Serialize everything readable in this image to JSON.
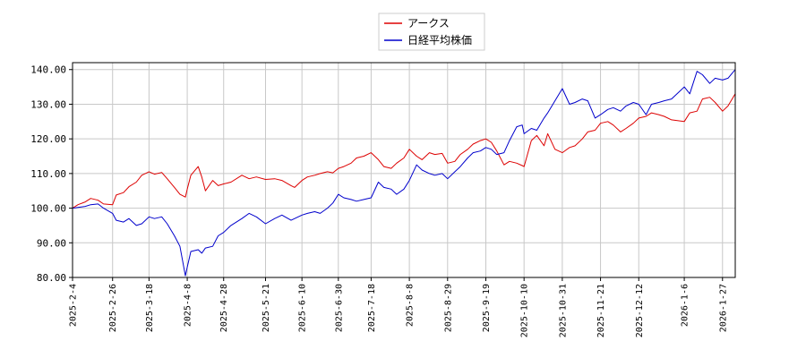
{
  "chart_data": {
    "type": "line",
    "title": "",
    "xlabel": "",
    "ylabel": "",
    "ylim": [
      80,
      142
    ],
    "yticks": [
      "80.00",
      "90.00",
      "100.00",
      "110.00",
      "120.00",
      "130.00",
      "140.00"
    ],
    "xticks": [
      "2025-2-4",
      "2025-2-26",
      "2025-3-18",
      "2025-4-8",
      "2025-4-28",
      "2025-5-21",
      "2025-6-10",
      "2025-6-30",
      "2025-7-18",
      "2025-8-8",
      "2025-8-29",
      "2025-9-19",
      "2025-10-10",
      "2025-10-31",
      "2025-11-21",
      "2025-12-12",
      "2026-1-6",
      "2026-1-27"
    ],
    "grid": true,
    "legend_position": "top-center",
    "series": [
      {
        "name": "アークス",
        "color": "#dd0000",
        "points": [
          [
            "2025-2-4",
            100.0
          ],
          [
            "2025-2-7",
            101.0
          ],
          [
            "2025-2-11",
            101.8
          ],
          [
            "2025-2-14",
            102.8
          ],
          [
            "2025-2-18",
            102.3
          ],
          [
            "2025-2-21",
            101.2
          ],
          [
            "2025-2-26",
            101.0
          ],
          [
            "2025-2-28",
            103.8
          ],
          [
            "2025-3-4",
            104.5
          ],
          [
            "2025-3-7",
            106.2
          ],
          [
            "2025-3-11",
            107.5
          ],
          [
            "2025-3-14",
            109.5
          ],
          [
            "2025-3-18",
            110.5
          ],
          [
            "2025-3-21",
            109.8
          ],
          [
            "2025-3-25",
            110.3
          ],
          [
            "2025-3-28",
            108.5
          ],
          [
            "2025-4-1",
            106.0
          ],
          [
            "2025-4-4",
            104.0
          ],
          [
            "2025-4-7",
            103.2
          ],
          [
            "2025-4-8",
            105.5
          ],
          [
            "2025-4-10",
            109.5
          ],
          [
            "2025-4-14",
            112.0
          ],
          [
            "2025-4-16",
            109.0
          ],
          [
            "2025-4-18",
            105.0
          ],
          [
            "2025-4-22",
            108.0
          ],
          [
            "2025-4-25",
            106.5
          ],
          [
            "2025-4-28",
            107.0
          ],
          [
            "2025-5-2",
            107.5
          ],
          [
            "2025-5-8",
            109.5
          ],
          [
            "2025-5-12",
            108.5
          ],
          [
            "2025-5-16",
            109.0
          ],
          [
            "2025-5-21",
            108.3
          ],
          [
            "2025-5-26",
            108.5
          ],
          [
            "2025-5-30",
            108.0
          ],
          [
            "2025-6-4",
            106.5
          ],
          [
            "2025-6-6",
            106.0
          ],
          [
            "2025-6-10",
            108.0
          ],
          [
            "2025-6-13",
            109.0
          ],
          [
            "2025-6-17",
            109.5
          ],
          [
            "2025-6-20",
            110.0
          ],
          [
            "2025-6-24",
            110.5
          ],
          [
            "2025-6-27",
            110.2
          ],
          [
            "2025-6-30",
            111.5
          ],
          [
            "2025-7-3",
            112.0
          ],
          [
            "2025-7-7",
            113.0
          ],
          [
            "2025-7-10",
            114.5
          ],
          [
            "2025-7-14",
            115.0
          ],
          [
            "2025-7-18",
            116.0
          ],
          [
            "2025-7-22",
            114.0
          ],
          [
            "2025-7-25",
            112.0
          ],
          [
            "2025-7-29",
            111.5
          ],
          [
            "2025-8-1",
            113.0
          ],
          [
            "2025-8-5",
            114.5
          ],
          [
            "2025-8-8",
            117.0
          ],
          [
            "2025-8-12",
            115.0
          ],
          [
            "2025-8-15",
            114.0
          ],
          [
            "2025-8-19",
            116.0
          ],
          [
            "2025-8-22",
            115.5
          ],
          [
            "2025-8-26",
            115.8
          ],
          [
            "2025-8-29",
            113.0
          ],
          [
            "2025-9-2",
            113.5
          ],
          [
            "2025-9-5",
            115.5
          ],
          [
            "2025-9-9",
            117.0
          ],
          [
            "2025-9-12",
            118.5
          ],
          [
            "2025-9-16",
            119.5
          ],
          [
            "2025-9-19",
            120.0
          ],
          [
            "2025-9-22",
            119.0
          ],
          [
            "2025-9-25",
            116.5
          ],
          [
            "2025-9-29",
            112.5
          ],
          [
            "2025-10-2",
            113.5
          ],
          [
            "2025-10-6",
            113.0
          ],
          [
            "2025-10-9",
            112.3
          ],
          [
            "2025-10-10",
            112.0
          ],
          [
            "2025-10-14",
            119.5
          ],
          [
            "2025-10-17",
            121.0
          ],
          [
            "2025-10-21",
            118.0
          ],
          [
            "2025-10-23",
            121.5
          ],
          [
            "2025-10-27",
            117.0
          ],
          [
            "2025-10-31",
            116.0
          ],
          [
            "2025-11-4",
            117.5
          ],
          [
            "2025-11-7",
            118.0
          ],
          [
            "2025-11-11",
            120.0
          ],
          [
            "2025-11-14",
            122.0
          ],
          [
            "2025-11-18",
            122.5
          ],
          [
            "2025-11-21",
            124.5
          ],
          [
            "2025-11-25",
            125.0
          ],
          [
            "2025-11-28",
            124.0
          ],
          [
            "2025-12-2",
            122.0
          ],
          [
            "2025-12-5",
            123.0
          ],
          [
            "2025-12-9",
            124.5
          ],
          [
            "2025-12-12",
            126.0
          ],
          [
            "2025-12-16",
            126.5
          ],
          [
            "2025-12-19",
            127.5
          ],
          [
            "2025-12-23",
            127.0
          ],
          [
            "2025-12-26",
            126.5
          ],
          [
            "2025-12-30",
            125.5
          ],
          [
            "2026-1-6",
            125.0
          ],
          [
            "2026-1-9",
            127.5
          ],
          [
            "2026-1-13",
            128.0
          ],
          [
            "2026-1-16",
            131.5
          ],
          [
            "2026-1-20",
            132.0
          ],
          [
            "2026-1-23",
            130.5
          ],
          [
            "2026-1-27",
            128.0
          ],
          [
            "2026-1-30",
            129.5
          ],
          [
            "2026-2-3",
            133.0
          ]
        ]
      },
      {
        "name": "日経平均株価",
        "color": "#0000cc",
        "points": [
          [
            "2025-2-4",
            100.0
          ],
          [
            "2025-2-7",
            100.2
          ],
          [
            "2025-2-11",
            100.5
          ],
          [
            "2025-2-14",
            101.0
          ],
          [
            "2025-2-18",
            101.2
          ],
          [
            "2025-2-21",
            100.0
          ],
          [
            "2025-2-26",
            98.5
          ],
          [
            "2025-2-28",
            96.5
          ],
          [
            "2025-3-4",
            96.0
          ],
          [
            "2025-3-7",
            97.0
          ],
          [
            "2025-3-11",
            95.0
          ],
          [
            "2025-3-14",
            95.5
          ],
          [
            "2025-3-18",
            97.5
          ],
          [
            "2025-3-21",
            97.0
          ],
          [
            "2025-3-25",
            97.5
          ],
          [
            "2025-3-28",
            95.5
          ],
          [
            "2025-4-1",
            92.0
          ],
          [
            "2025-4-4",
            89.0
          ],
          [
            "2025-4-7",
            80.5
          ],
          [
            "2025-4-8",
            83.0
          ],
          [
            "2025-4-10",
            87.5
          ],
          [
            "2025-4-14",
            88.0
          ],
          [
            "2025-4-16",
            87.0
          ],
          [
            "2025-4-18",
            88.5
          ],
          [
            "2025-4-22",
            89.0
          ],
          [
            "2025-4-25",
            92.0
          ],
          [
            "2025-4-28",
            93.0
          ],
          [
            "2025-5-2",
            95.0
          ],
          [
            "2025-5-8",
            97.0
          ],
          [
            "2025-5-12",
            98.5
          ],
          [
            "2025-5-16",
            97.5
          ],
          [
            "2025-5-21",
            95.5
          ],
          [
            "2025-5-26",
            97.0
          ],
          [
            "2025-5-30",
            98.0
          ],
          [
            "2025-6-4",
            96.5
          ],
          [
            "2025-6-6",
            97.0
          ],
          [
            "2025-6-10",
            98.0
          ],
          [
            "2025-6-13",
            98.5
          ],
          [
            "2025-6-17",
            99.0
          ],
          [
            "2025-6-20",
            98.5
          ],
          [
            "2025-6-24",
            100.0
          ],
          [
            "2025-6-27",
            101.5
          ],
          [
            "2025-6-30",
            104.0
          ],
          [
            "2025-7-3",
            103.0
          ],
          [
            "2025-7-7",
            102.5
          ],
          [
            "2025-7-10",
            102.0
          ],
          [
            "2025-7-14",
            102.5
          ],
          [
            "2025-7-18",
            103.0
          ],
          [
            "2025-7-22",
            107.5
          ],
          [
            "2025-7-25",
            106.0
          ],
          [
            "2025-7-29",
            105.5
          ],
          [
            "2025-8-1",
            104.0
          ],
          [
            "2025-8-5",
            105.5
          ],
          [
            "2025-8-8",
            108.0
          ],
          [
            "2025-8-12",
            112.5
          ],
          [
            "2025-8-15",
            111.0
          ],
          [
            "2025-8-19",
            110.0
          ],
          [
            "2025-8-22",
            109.5
          ],
          [
            "2025-8-26",
            110.0
          ],
          [
            "2025-8-29",
            108.5
          ],
          [
            "2025-9-2",
            110.5
          ],
          [
            "2025-9-5",
            112.0
          ],
          [
            "2025-9-9",
            114.5
          ],
          [
            "2025-9-12",
            116.0
          ],
          [
            "2025-9-16",
            116.5
          ],
          [
            "2025-9-19",
            117.5
          ],
          [
            "2025-9-22",
            117.0
          ],
          [
            "2025-9-25",
            115.5
          ],
          [
            "2025-9-29",
            116.0
          ],
          [
            "2025-10-2",
            119.5
          ],
          [
            "2025-10-6",
            123.5
          ],
          [
            "2025-10-9",
            124.0
          ],
          [
            "2025-10-10",
            121.5
          ],
          [
            "2025-10-14",
            123.0
          ],
          [
            "2025-10-17",
            122.5
          ],
          [
            "2025-10-21",
            126.0
          ],
          [
            "2025-10-23",
            127.5
          ],
          [
            "2025-10-27",
            131.0
          ],
          [
            "2025-10-31",
            134.5
          ],
          [
            "2025-11-4",
            130.0
          ],
          [
            "2025-11-7",
            130.5
          ],
          [
            "2025-11-11",
            131.5
          ],
          [
            "2025-11-14",
            131.0
          ],
          [
            "2025-11-18",
            126.0
          ],
          [
            "2025-11-21",
            127.0
          ],
          [
            "2025-11-25",
            128.5
          ],
          [
            "2025-11-28",
            129.0
          ],
          [
            "2025-12-2",
            128.0
          ],
          [
            "2025-12-5",
            129.5
          ],
          [
            "2025-12-9",
            130.5
          ],
          [
            "2025-12-12",
            130.0
          ],
          [
            "2025-12-16",
            127.0
          ],
          [
            "2025-12-19",
            130.0
          ],
          [
            "2025-12-23",
            130.5
          ],
          [
            "2025-12-26",
            131.0
          ],
          [
            "2025-12-30",
            131.5
          ],
          [
            "2026-1-6",
            135.0
          ],
          [
            "2026-1-9",
            133.0
          ],
          [
            "2026-1-13",
            139.5
          ],
          [
            "2026-1-16",
            138.5
          ],
          [
            "2026-1-20",
            136.0
          ],
          [
            "2026-1-23",
            137.5
          ],
          [
            "2026-1-27",
            137.0
          ],
          [
            "2026-1-30",
            137.5
          ],
          [
            "2026-2-3",
            140.0
          ]
        ]
      }
    ]
  }
}
